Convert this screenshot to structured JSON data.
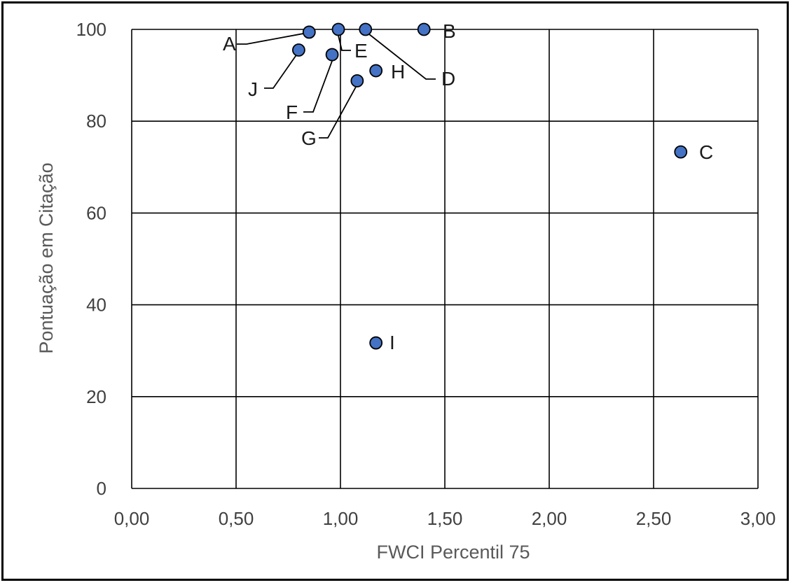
{
  "chart_data": {
    "type": "scatter",
    "title": "",
    "xlabel": "FWCI Percentil 75",
    "ylabel": "Pontuação em Citação",
    "xlim": [
      0,
      3
    ],
    "ylim": [
      0,
      100
    ],
    "x_ticks": [
      "0,00",
      "0,50",
      "1,00",
      "1,50",
      "2,00",
      "2,50",
      "3,00"
    ],
    "y_ticks": [
      "0",
      "20",
      "40",
      "60",
      "80",
      "100"
    ],
    "grid": true,
    "legend": "none",
    "marker_color": "#4472C4",
    "points": [
      {
        "label": "A",
        "x": 0.85,
        "y": 99.4
      },
      {
        "label": "B",
        "x": 1.4,
        "y": 100
      },
      {
        "label": "C",
        "x": 2.63,
        "y": 73.3
      },
      {
        "label": "D",
        "x": 1.12,
        "y": 100
      },
      {
        "label": "E",
        "x": 0.99,
        "y": 100
      },
      {
        "label": "F",
        "x": 0.96,
        "y": 94.5
      },
      {
        "label": "G",
        "x": 1.08,
        "y": 88.8
      },
      {
        "label": "H",
        "x": 1.17,
        "y": 91.0
      },
      {
        "label": "I",
        "x": 1.17,
        "y": 31.7
      },
      {
        "label": "J",
        "x": 0.8,
        "y": 95.5
      }
    ]
  }
}
